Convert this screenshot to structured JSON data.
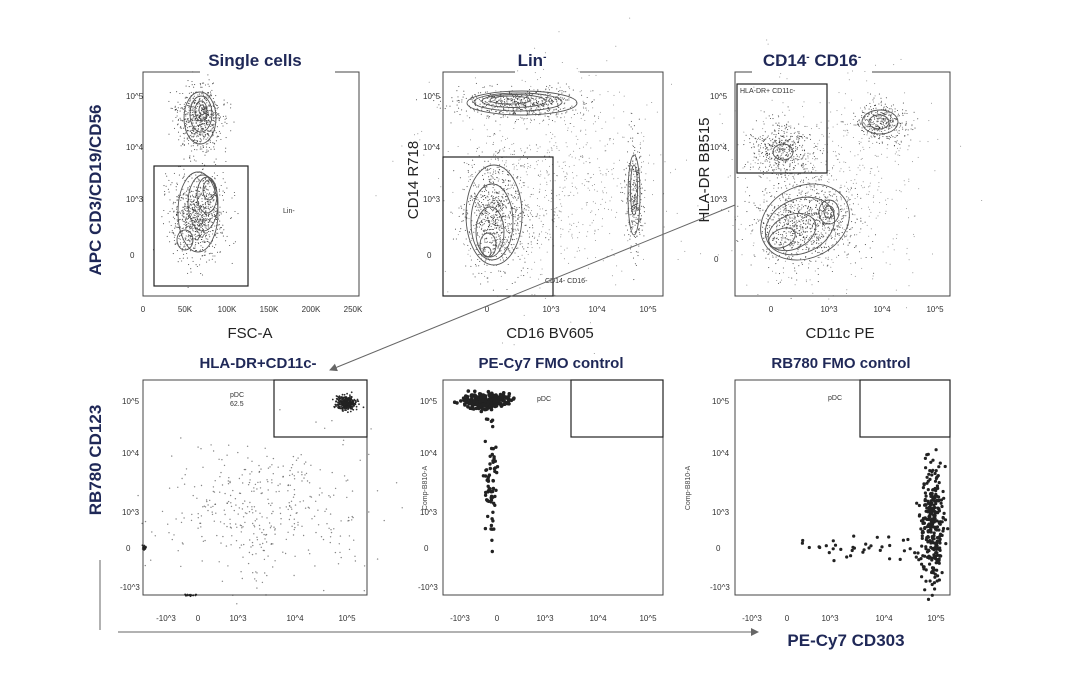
{
  "chart_data": [
    {
      "type": "scatter",
      "panel": "single-cells",
      "title": "Single cells",
      "xlabel": "FSC-A",
      "ylabel": "APC CD3/CD19/CD56",
      "x_ticks": [
        "0",
        "50K",
        "100K",
        "150K",
        "200K",
        "250K"
      ],
      "y_ticks": [
        "10^5",
        "10^4",
        "10^3",
        "0"
      ],
      "gate": {
        "name": "Lin-"
      }
    },
    {
      "type": "scatter",
      "panel": "lin-neg",
      "title": "Lin-",
      "xlabel": "CD16 BV605",
      "ylabel": "CD14 R718",
      "x_ticks": [
        "0",
        "10^3",
        "10^4",
        "10^5"
      ],
      "y_ticks": [
        "10^5",
        "10^4",
        "10^3",
        "0"
      ],
      "gate": {
        "name": "CD14- CD16-"
      }
    },
    {
      "type": "scatter",
      "panel": "cd14-cd16-neg",
      "title": "CD14- CD16-",
      "xlabel": "CD11c PE",
      "ylabel": "HLA-DR BB515",
      "x_ticks": [
        "0",
        "10^3",
        "10^4",
        "10^5"
      ],
      "y_ticks": [
        "10^5",
        "10^4",
        "10^3",
        "0"
      ],
      "gate": {
        "name": "HLA-DR+ CD11c-"
      }
    },
    {
      "type": "scatter",
      "panel": "hla-dr-cd11c",
      "title": "HLA-DR+CD11c-",
      "xlabel": "",
      "ylabel": "",
      "x_ticks": [
        "-10^3",
        "0",
        "10^3",
        "10^4",
        "10^5"
      ],
      "y_ticks": [
        "10^5",
        "10^4",
        "10^3",
        "0",
        "-10^3"
      ],
      "gate": {
        "name": "pDC",
        "percent": 62.5
      }
    },
    {
      "type": "scatter",
      "panel": "pecy7-fmo",
      "title": "PE-Cy7 FMO control",
      "xlabel": "",
      "ylabel": "Comp-B810-A",
      "x_ticks": [
        "-10^3",
        "0",
        "10^3",
        "10^4",
        "10^5"
      ],
      "y_ticks": [
        "10^5",
        "10^4",
        "10^3",
        "0",
        "-10^3"
      ],
      "gate": {
        "name": "pDC"
      }
    },
    {
      "type": "scatter",
      "panel": "rb780-fmo",
      "title": "RB780 FMO control",
      "xlabel": "",
      "ylabel": "Comp-B810-A",
      "x_ticks": [
        "-10^3",
        "0",
        "10^3",
        "10^4",
        "10^5"
      ],
      "y_ticks": [
        "10^5",
        "10^4",
        "10^3",
        "0",
        "-10^3"
      ],
      "gate": {
        "name": "pDC"
      }
    }
  ],
  "figure": {
    "bottom_ylabel": "RB780 CD123",
    "bottom_xlabel": "PE-Cy7 CD303"
  },
  "colors": {
    "title": "#1f2857",
    "dots": "#222222",
    "frame": "#444444"
  }
}
